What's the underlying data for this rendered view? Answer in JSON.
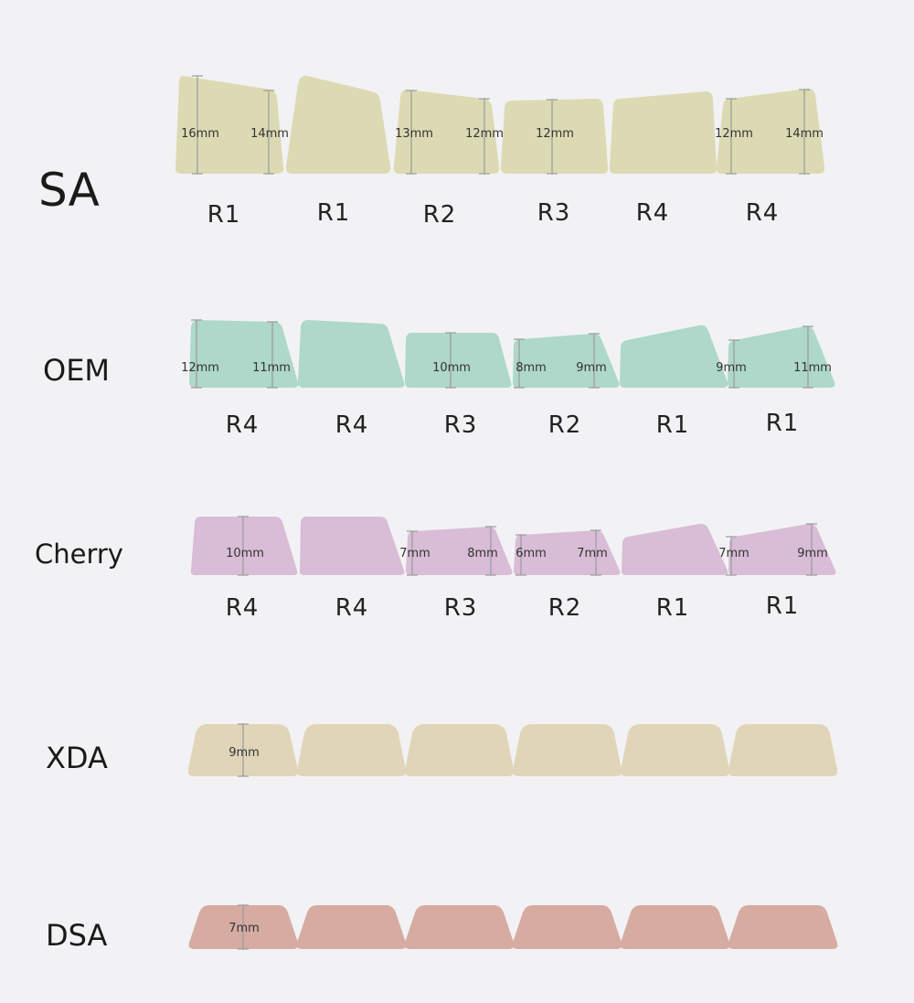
{
  "profiles": [
    {
      "name": "SA",
      "color": "#dcdab3",
      "rows": [
        "R1",
        "R1",
        "R2",
        "R3",
        "R4",
        "R4"
      ],
      "measurements": [
        [
          "16mm",
          "14mm"
        ],
        [],
        [
          "13mm",
          "12mm"
        ],
        [
          "12mm"
        ],
        [],
        [
          "12mm",
          "14mm"
        ]
      ]
    },
    {
      "name": "OEM",
      "color": "#aed8c9",
      "rows": [
        "R4",
        "R4",
        "R3",
        "R2",
        "R1",
        "R1"
      ],
      "measurements": [
        [
          "12mm",
          "11mm"
        ],
        [],
        [
          "10mm"
        ],
        [
          "8mm",
          "9mm"
        ],
        [],
        [
          "9mm",
          "11mm"
        ]
      ]
    },
    {
      "name": "Cherry",
      "color": "#d9bcd6",
      "rows": [
        "R4",
        "R4",
        "R3",
        "R2",
        "R1",
        "R1"
      ],
      "measurements": [
        [
          "10mm"
        ],
        [],
        [
          "7mm",
          "8mm"
        ],
        [
          "6mm",
          "7mm"
        ],
        [],
        [
          "7mm",
          "9mm"
        ]
      ]
    },
    {
      "name": "XDA",
      "color": "#e1d5b9",
      "rows": [],
      "measurements": [
        [
          "9mm"
        ],
        [],
        [],
        [],
        [],
        []
      ]
    },
    {
      "name": "DSA",
      "color": "#d6aba1",
      "rows": [],
      "measurements": [
        [
          "7mm"
        ],
        [],
        [],
        [],
        [],
        []
      ]
    }
  ]
}
